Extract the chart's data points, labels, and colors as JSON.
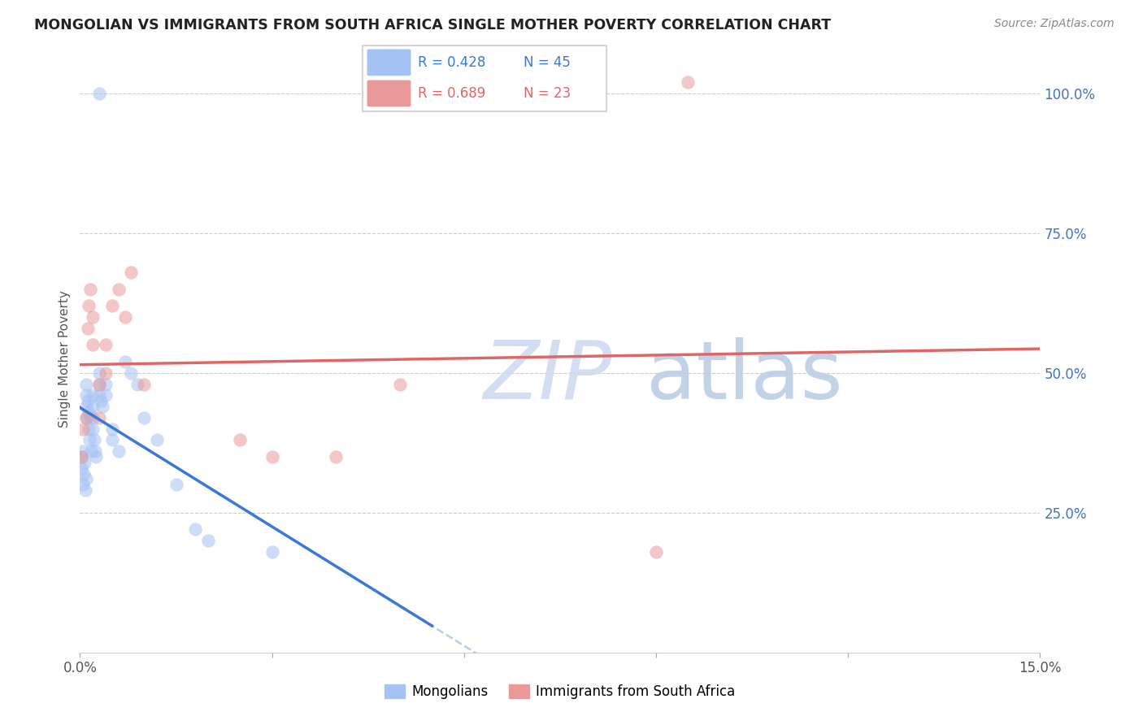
{
  "title": "MONGOLIAN VS IMMIGRANTS FROM SOUTH AFRICA SINGLE MOTHER POVERTY CORRELATION CHART",
  "source": "Source: ZipAtlas.com",
  "ylabel": "Single Mother Poverty",
  "xlim": [
    0.0,
    0.15
  ],
  "ylim": [
    0.0,
    1.05
  ],
  "xticks": [
    0.0,
    0.03,
    0.06,
    0.09,
    0.12,
    0.15
  ],
  "xtick_labels": [
    "0.0%",
    "",
    "",
    "",
    "",
    "15.0%"
  ],
  "yticks_right": [
    0.25,
    0.5,
    0.75,
    1.0
  ],
  "ytick_labels_right": [
    "25.0%",
    "50.0%",
    "75.0%",
    "100.0%"
  ],
  "blue_scatter_color": "#a4c2f4",
  "pink_scatter_color": "#ea9999",
  "blue_line_color": "#3c78d8",
  "pink_line_color": "#e06666",
  "gray_dashed_color": "#b0c8e8",
  "watermark_zip_color": "#d6e4f7",
  "watermark_atlas_color": "#c9daf8",
  "mongolian_x": [
    0.0002,
    0.0003,
    0.0004,
    0.0005,
    0.0006,
    0.0007,
    0.0008,
    0.0009,
    0.001,
    0.001,
    0.001,
    0.001,
    0.0012,
    0.0013,
    0.0014,
    0.0015,
    0.0016,
    0.0017,
    0.002,
    0.002,
    0.002,
    0.002,
    0.0022,
    0.0024,
    0.0025,
    0.003,
    0.003,
    0.003,
    0.0032,
    0.0035,
    0.004,
    0.004,
    0.005,
    0.005,
    0.006,
    0.007,
    0.008,
    0.009,
    0.01,
    0.012,
    0.015,
    0.018,
    0.02,
    0.03,
    0.003
  ],
  "mongolian_y": [
    0.33,
    0.35,
    0.3,
    0.36,
    0.32,
    0.34,
    0.29,
    0.31,
    0.48,
    0.44,
    0.46,
    0.42,
    0.45,
    0.43,
    0.4,
    0.38,
    0.42,
    0.36,
    0.46,
    0.44,
    0.42,
    0.4,
    0.38,
    0.36,
    0.35,
    0.5,
    0.48,
    0.46,
    0.45,
    0.44,
    0.48,
    0.46,
    0.4,
    0.38,
    0.36,
    0.52,
    0.5,
    0.48,
    0.42,
    0.38,
    0.3,
    0.22,
    0.2,
    0.18,
    1.0
  ],
  "southafrica_x": [
    0.0002,
    0.0005,
    0.001,
    0.0012,
    0.0014,
    0.0016,
    0.002,
    0.002,
    0.003,
    0.003,
    0.004,
    0.004,
    0.005,
    0.006,
    0.007,
    0.008,
    0.01,
    0.025,
    0.03,
    0.04,
    0.05,
    0.09,
    0.095
  ],
  "southafrica_y": [
    0.35,
    0.4,
    0.42,
    0.58,
    0.62,
    0.65,
    0.6,
    0.55,
    0.48,
    0.42,
    0.55,
    0.5,
    0.62,
    0.65,
    0.6,
    0.68,
    0.48,
    0.38,
    0.35,
    0.35,
    0.48,
    0.18,
    1.02
  ]
}
